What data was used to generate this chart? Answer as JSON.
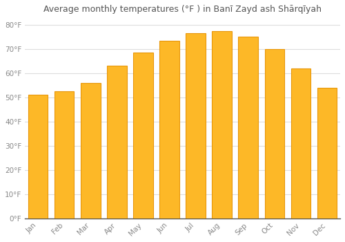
{
  "title": "Average monthly temperatures (°F ) in Banī Zayd ash Shārqīyah",
  "months": [
    "Jan",
    "Feb",
    "Mar",
    "Apr",
    "May",
    "Jun",
    "Jul",
    "Aug",
    "Sep",
    "Oct",
    "Nov",
    "Dec"
  ],
  "values": [
    51,
    52.5,
    56,
    63,
    68.5,
    73.5,
    76.5,
    77.5,
    75,
    70,
    62,
    54
  ],
  "bar_color": "#FDB827",
  "bar_edge_color": "#E8960A",
  "background_color": "#FFFFFF",
  "plot_bg_color": "#FFFFFF",
  "grid_color": "#DDDDDD",
  "text_color": "#888888",
  "title_color": "#555555",
  "axis_color": "#555555",
  "ylim": [
    0,
    83
  ],
  "yticks": [
    0,
    10,
    20,
    30,
    40,
    50,
    60,
    70,
    80
  ],
  "ytick_labels": [
    "0°F",
    "10°F",
    "20°F",
    "30°F",
    "40°F",
    "50°F",
    "60°F",
    "70°F",
    "80°F"
  ],
  "title_fontsize": 9,
  "tick_fontsize": 7.5,
  "bar_width": 0.75
}
